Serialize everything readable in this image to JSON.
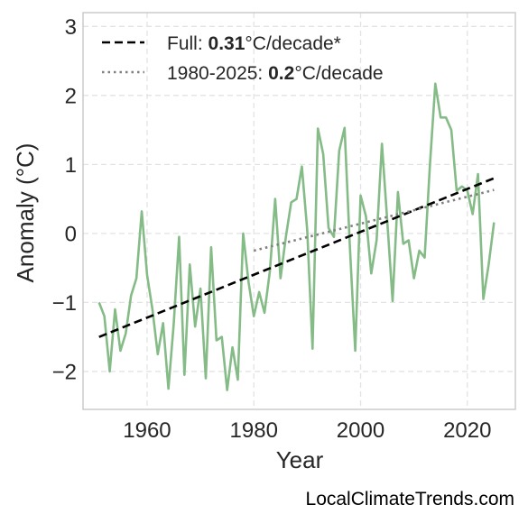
{
  "chart_data": {
    "type": "line",
    "xlabel": "Year",
    "ylabel": "Anomaly (°C)",
    "xlim": [
      1948,
      2029
    ],
    "ylim": [
      -2.55,
      3.2
    ],
    "xticks": [
      1960,
      1980,
      2000,
      2020
    ],
    "xtick_labels": [
      "1960",
      "1980",
      "2000",
      "2020"
    ],
    "yticks": [
      -2,
      -1,
      0,
      1,
      2,
      3
    ],
    "ytick_labels": [
      "−2",
      "−1",
      "0",
      "1",
      "2",
      "3"
    ],
    "grid": true,
    "legend_position": "top-left",
    "series": [
      {
        "kind": "data",
        "color": "#85bb86",
        "style": "solid",
        "x": [
          1951,
          1952,
          1953,
          1954,
          1955,
          1956,
          1957,
          1958,
          1959,
          1960,
          1961,
          1962,
          1963,
          1964,
          1965,
          1966,
          1967,
          1968,
          1969,
          1970,
          1971,
          1972,
          1973,
          1974,
          1975,
          1976,
          1977,
          1978,
          1979,
          1980,
          1981,
          1982,
          1983,
          1984,
          1985,
          1986,
          1987,
          1988,
          1989,
          1990,
          1991,
          1992,
          1993,
          1994,
          1995,
          1996,
          1997,
          1998,
          1999,
          2000,
          2001,
          2002,
          2003,
          2004,
          2005,
          2006,
          2007,
          2008,
          2009,
          2010,
          2011,
          2012,
          2013,
          2014,
          2015,
          2016,
          2017,
          2018,
          2019,
          2020,
          2021,
          2022,
          2023,
          2024,
          2025
        ],
        "y": [
          -1.0,
          -1.2,
          -2.0,
          -1.1,
          -1.7,
          -1.45,
          -0.9,
          -0.65,
          0.32,
          -0.6,
          -1.1,
          -1.75,
          -1.3,
          -2.25,
          -1.3,
          -0.05,
          -2.05,
          -0.45,
          -1.35,
          -0.8,
          -2.1,
          -0.2,
          -1.55,
          -1.5,
          -2.27,
          -1.65,
          -2.12,
          0.0,
          -0.7,
          -1.2,
          -0.85,
          -1.15,
          -0.55,
          0.5,
          -0.65,
          -0.05,
          0.45,
          0.5,
          0.97,
          0.05,
          -1.67,
          1.52,
          1.15,
          0.08,
          -0.05,
          1.2,
          1.53,
          -0.2,
          -1.7,
          0.55,
          0.25,
          -0.58,
          -0.1,
          1.3,
          0.18,
          -0.98,
          0.6,
          -0.15,
          -0.1,
          -0.65,
          -0.25,
          -0.35,
          1.0,
          2.17,
          1.68,
          1.68,
          1.5,
          0.62,
          0.68,
          0.62,
          0.28,
          0.86,
          -0.95,
          -0.45,
          0.16
        ]
      },
      {
        "kind": "trend",
        "name_prefix": "Full: ",
        "name_value": "0.31",
        "name_suffix": "°C/decade*",
        "color": "#000000",
        "style": "dashed",
        "x": [
          1951,
          2025
        ],
        "y": [
          -1.5,
          0.8
        ]
      },
      {
        "kind": "trend",
        "name_prefix": "1980-2025: ",
        "name_value": "0.2",
        "name_suffix": "°C/decade",
        "color": "#808080",
        "style": "dotted",
        "x": [
          1980,
          2025
        ],
        "y": [
          -0.25,
          0.63
        ]
      }
    ]
  },
  "watermark": "LocalClimateTrends.com"
}
